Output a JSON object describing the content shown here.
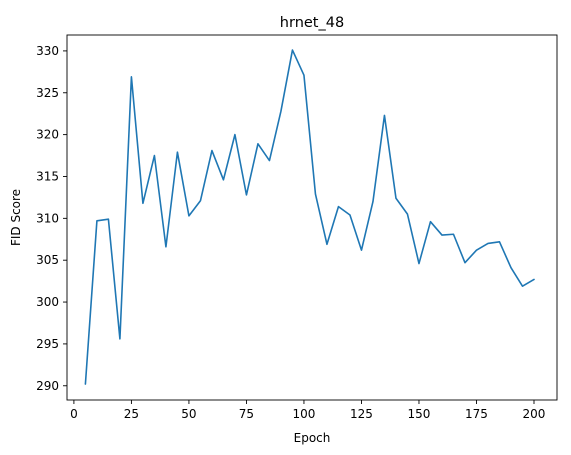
{
  "chart_data": {
    "type": "line",
    "title": "hrnet_48",
    "xlabel": "Epoch",
    "ylabel": "FID Score",
    "xlim": [
      -3,
      210
    ],
    "ylim": [
      288.3,
      331.9
    ],
    "xticks": [
      0,
      25,
      50,
      75,
      100,
      125,
      150,
      175,
      200
    ],
    "yticks": [
      290,
      295,
      300,
      305,
      310,
      315,
      320,
      325,
      330
    ],
    "grid": false,
    "line_color": "#1f77b4",
    "series": [
      {
        "x": [
          5,
          10,
          15,
          20,
          25,
          30,
          35,
          40,
          45,
          50,
          55,
          60,
          65,
          70,
          75,
          80,
          85,
          90,
          95,
          100,
          105,
          110,
          115,
          120,
          125,
          130,
          135,
          140,
          145,
          150,
          155,
          160,
          165,
          170,
          175,
          180,
          185,
          190,
          195,
          200
        ],
        "values": [
          290.2,
          309.7,
          309.9,
          295.6,
          326.9,
          311.8,
          317.5,
          306.6,
          317.9,
          310.3,
          312.1,
          318.1,
          314.6,
          320.0,
          312.8,
          318.9,
          316.9,
          322.8,
          330.1,
          327.1,
          312.9,
          306.9,
          311.4,
          310.4,
          306.2,
          312.0,
          322.3,
          312.4,
          310.5,
          304.6,
          309.6,
          308.0,
          308.1,
          304.7,
          306.2,
          307.0,
          307.2,
          304.1,
          301.9,
          302.7
        ]
      }
    ]
  }
}
